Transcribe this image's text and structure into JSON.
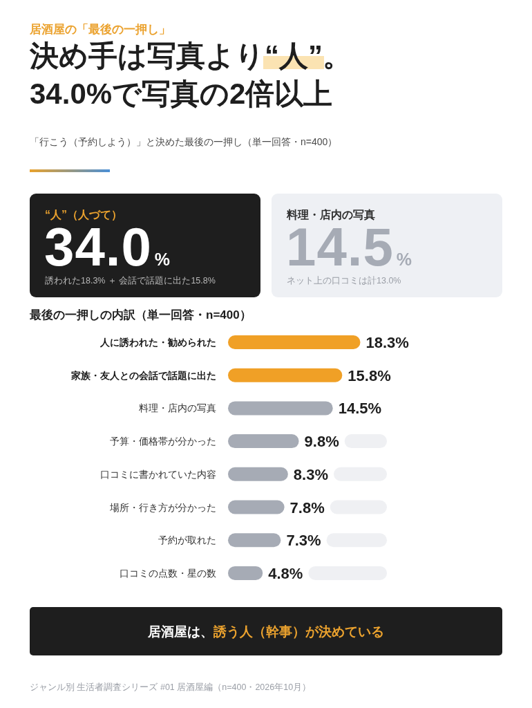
{
  "chart_data": [
    {
      "type": "other",
      "title": "決め手は写真より“人”。\n34.0%で写真の2倍以上",
      "subtitle": "「行こう（予約しよう）」と決めた最後の一押し（単一回答・n=400）",
      "annotations": [
        "居酒屋の「最後の一押し」"
      ]
    },
    {
      "type": "other",
      "title": "“人”（人づて）",
      "annotations": [
        "34.0%",
        "誘われた18.3% ＋ 会話で話題に出た15.8%"
      ]
    },
    {
      "type": "other",
      "title": "料理・店内の写真",
      "annotations": [
        "14.5%",
        "ネット上の口コミは計13.0%"
      ]
    },
    {
      "type": "bar",
      "orientation": "horizontal",
      "title": "最後の一押しの内訳（単一回答・n=400）",
      "categories": [
        "人に誘われた・勧められた",
        "家族・友人との会話で話題に出た",
        "料理・店内の写真",
        "予算・価格帯が分かった",
        "口コミに書かれていた内容",
        "場所・行き方が分かった",
        "予約が取れた",
        "口コミの点数・星の数"
      ],
      "values": [
        18.3,
        15.8,
        14.5,
        9.8,
        8.3,
        7.8,
        7.3,
        4.8
      ],
      "colors": [
        "#f0a026",
        "#f0a026",
        "#a6abb5",
        "#a6abb5",
        "#a6abb5",
        "#a6abb5",
        "#a6abb5",
        "#a6abb5"
      ],
      "value_labels": [
        "18.3%",
        "15.8%",
        "14.5%",
        "9.8%",
        "8.3%",
        "7.8%",
        "7.3%",
        "4.8%"
      ]
    },
    {
      "type": "other",
      "title": "居酒屋は、誘う人（幹事）が決めている",
      "annotations": [
        "ジャンル別 生活者調査シリーズ #01 居酒屋編（n=400・2026年10月）"
      ]
    }
  ]
}
